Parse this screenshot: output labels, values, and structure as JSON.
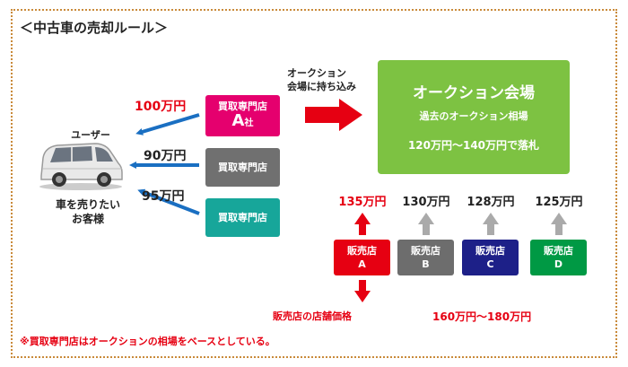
{
  "title": "＜中古車の売却ルール＞",
  "user": {
    "label": "ユーザー",
    "customer_line1": "車を売りたい",
    "customer_line2": "お客様"
  },
  "buy_offers": [
    {
      "price": "100万円",
      "shop_line1": "買取専門店",
      "shop_big": "A",
      "shop_small": "社"
    },
    {
      "price": "90万円",
      "shop_line1": "買取専門店"
    },
    {
      "price": "95万円",
      "shop_line1": "買取専門店"
    }
  ],
  "bring_in": {
    "line1": "オークション",
    "line2": "会場に持ち込み"
  },
  "auction": {
    "title": "オークション会場",
    "subtitle": "過去のオークション相場",
    "range": "120万円～140万円で落札"
  },
  "dealers": [
    {
      "price": "135万円",
      "line1": "販売店",
      "line2": "A"
    },
    {
      "price": "130万円",
      "line1": "販売店",
      "line2": "B"
    },
    {
      "price": "128万円",
      "line1": "販売店",
      "line2": "C"
    },
    {
      "price": "125万円",
      "line1": "販売店",
      "line2": "D"
    }
  ],
  "store_price": {
    "label": "販売店の店舗価格",
    "range": "160万円～180万円"
  },
  "footnote": "※買取専門店はオークションの相場をベースとしている。",
  "colors": {
    "red": "#e60012",
    "shop_a": "#e5006e",
    "shop_b": "#707070",
    "shop_c": "#17a69a",
    "auction": "#7dc242",
    "dealer_a": "#e60012",
    "dealer_b": "#6d6d6d",
    "dealer_c": "#1d2088",
    "dealer_d": "#009944",
    "blue_arrow": "#1a6fc2",
    "gray_arrow": "#aaaaaa",
    "frame": "#c98a3a"
  },
  "icons": {
    "car": "minivan-car-icon"
  }
}
